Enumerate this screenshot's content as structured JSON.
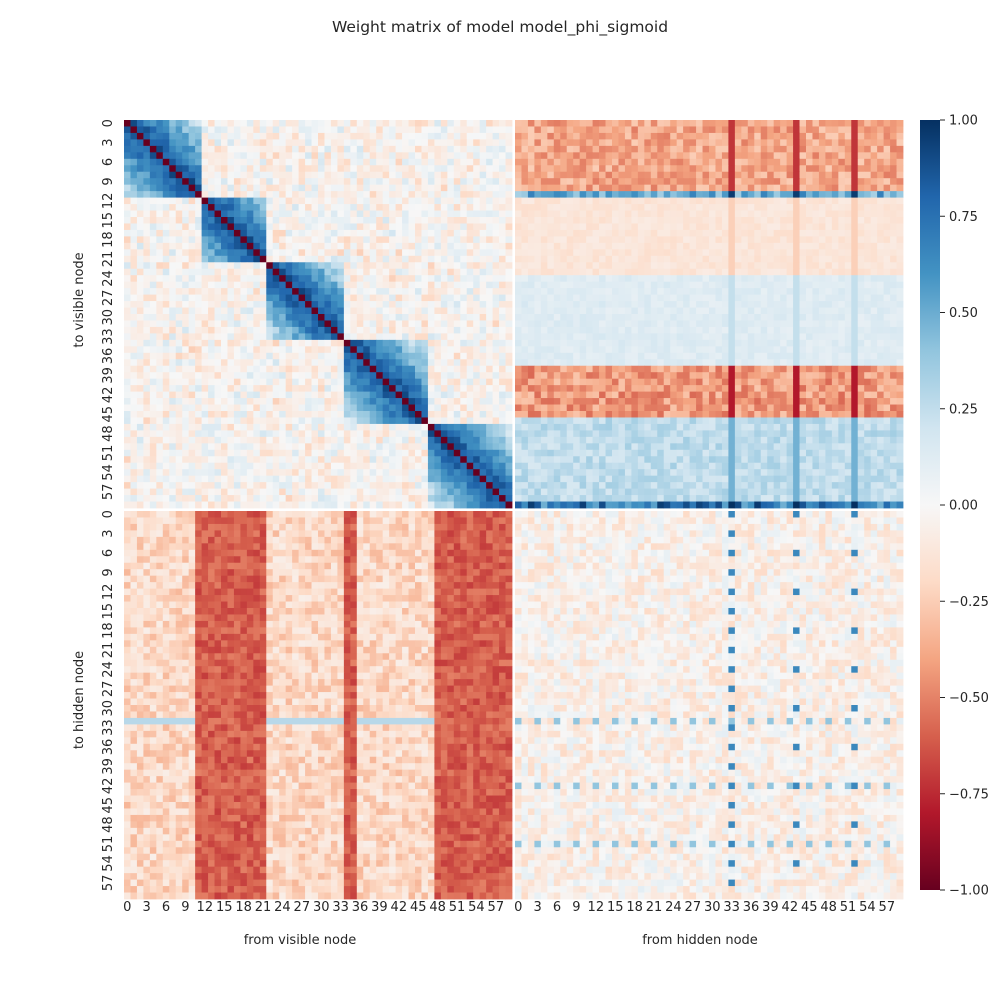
{
  "chart_data": {
    "type": "heatmap",
    "title": "Weight matrix of model model_phi_sigmoid",
    "xlabel_left": "from visible node",
    "xlabel_right": "from hidden node",
    "ylabel_top": "to visible node",
    "ylabel_bottom": "to hidden node",
    "n_visible": 60,
    "n_hidden": 60,
    "tick_step": 3,
    "tick_labels": [
      "0",
      "3",
      "6",
      "9",
      "12",
      "15",
      "18",
      "21",
      "24",
      "27",
      "30",
      "33",
      "36",
      "39",
      "42",
      "45",
      "48",
      "51",
      "54",
      "57"
    ],
    "colormap": "RdBu",
    "vmin": -1.0,
    "vmax": 1.0,
    "colorbar_ticks": [
      "1.00",
      "0.75",
      "0.50",
      "0.25",
      "0.00",
      "−0.25",
      "−0.50",
      "−0.75",
      "−1.00"
    ],
    "colorbar_values": [
      1.0,
      0.75,
      0.5,
      0.25,
      0.0,
      -0.25,
      -0.5,
      -0.75,
      -1.0
    ],
    "grid": false,
    "blocks": {
      "visible_to_visible": {
        "diagonal": -1.0,
        "diagonal_band_blocks": [
          [
            0,
            11
          ],
          [
            12,
            21
          ],
          [
            22,
            33
          ],
          [
            34,
            46
          ],
          [
            47,
            59
          ]
        ],
        "band_value": 0.9,
        "background_range": [
          -0.25,
          0.2
        ]
      },
      "hidden_to_visible": {
        "row_patterns": [
          {
            "rows": [
              0,
              10
            ],
            "value": -0.45
          },
          {
            "rows": [
              11,
              11
            ],
            "value": 0.6
          },
          {
            "rows": [
              12,
              23
            ],
            "value": -0.15
          },
          {
            "rows": [
              24,
              37
            ],
            "value": 0.15
          },
          {
            "rows": [
              38,
              45
            ],
            "value": -0.5
          },
          {
            "rows": [
              46,
              59
            ],
            "value": 0.3
          },
          {
            "rows": [
              59,
              59
            ],
            "value": 0.85
          }
        ],
        "strong_columns": [
          33,
          43,
          52
        ]
      },
      "visible_to_hidden": {
        "strong_negative_columns": [
          11,
          12,
          13,
          14,
          15,
          16,
          17,
          18,
          19,
          20,
          21,
          34,
          35,
          48,
          49,
          50,
          51,
          52,
          53,
          54,
          55,
          56,
          57,
          58,
          59
        ],
        "value_range": [
          -0.7,
          -0.15
        ]
      },
      "hidden_to_hidden": {
        "value_range": [
          -0.2,
          0.1
        ],
        "strong_columns": [
          33,
          43,
          52
        ],
        "strong_rows": [
          32,
          42,
          51
        ]
      }
    }
  }
}
